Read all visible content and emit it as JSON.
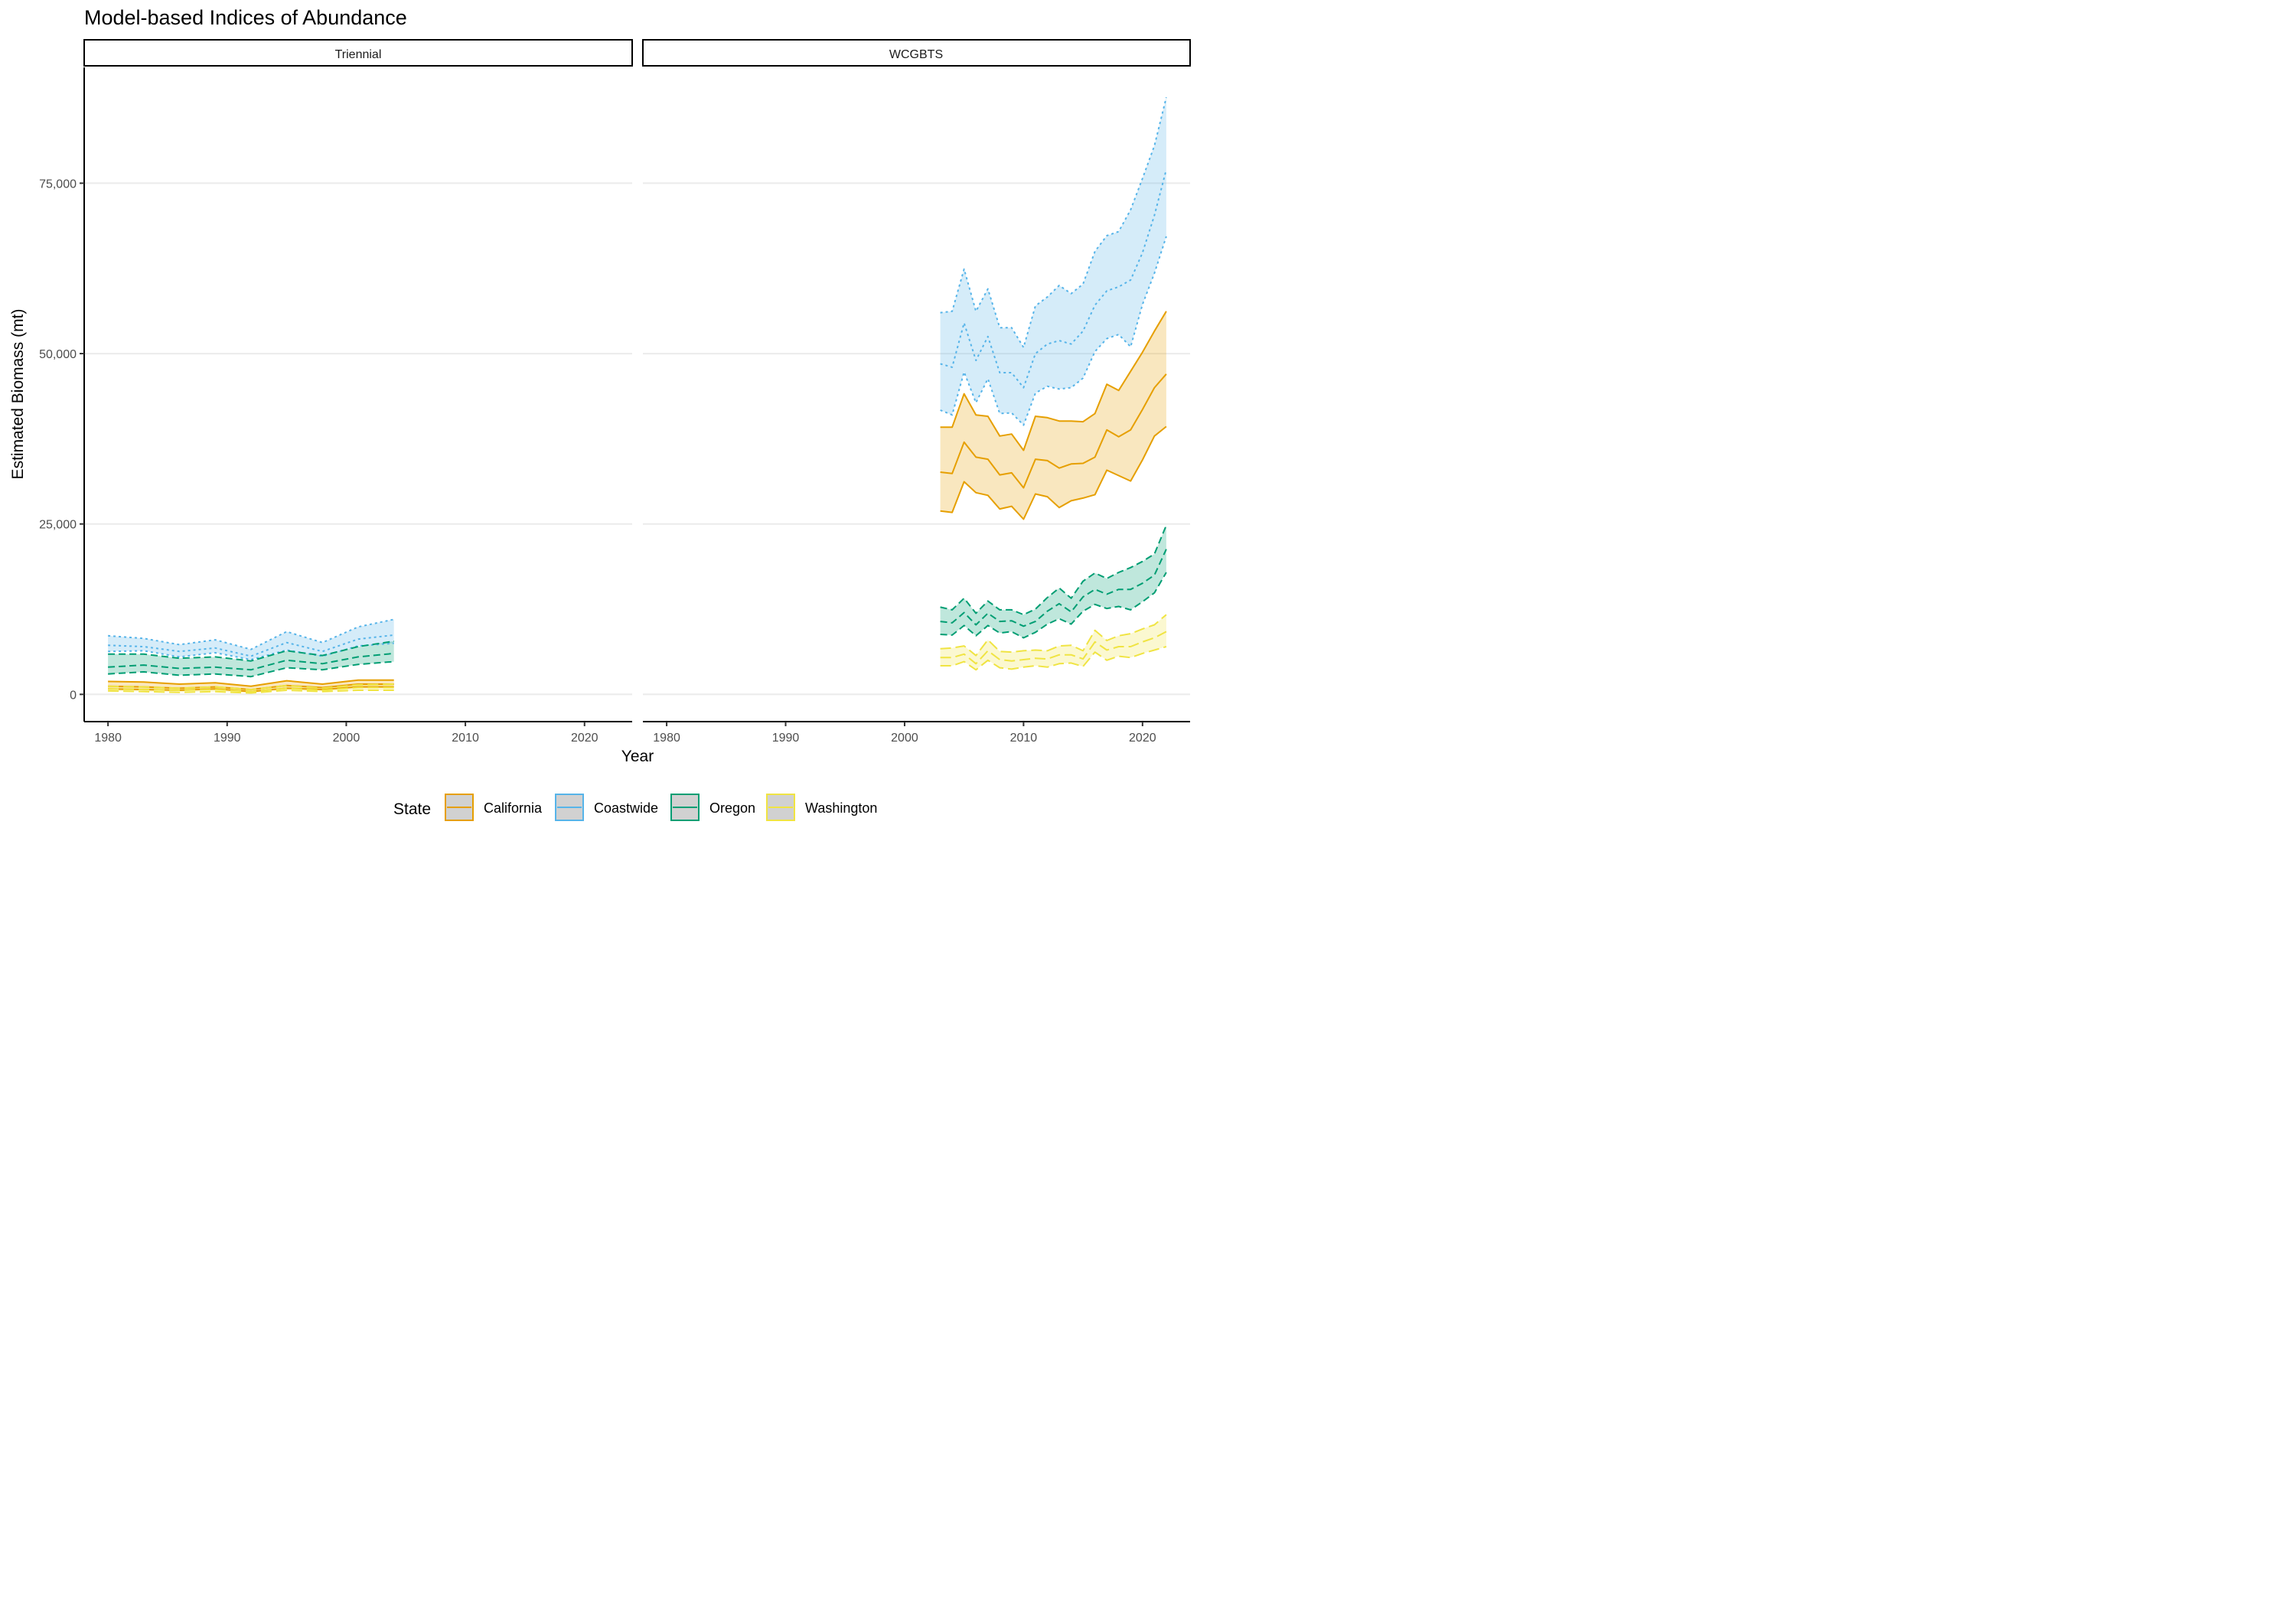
{
  "chart_data": {
    "type": "line",
    "title": "Model-based Indices of Abundance",
    "xlabel": "Year",
    "ylabel": "Estimated Biomass (mt)",
    "xlim": [
      1978,
      2024
    ],
    "ylim": [
      -4000,
      92000
    ],
    "x_ticks": [
      1980,
      1990,
      2000,
      2010,
      2020
    ],
    "y_ticks": [
      0,
      25000,
      50000,
      75000
    ],
    "y_tick_labels": [
      "0",
      "25,000",
      "50,000",
      "75,000"
    ],
    "grid": "horizontal major lines",
    "legend": {
      "title": "State",
      "position": "bottom",
      "entries": [
        {
          "name": "California",
          "color": "#E69F00",
          "linestyle": "solid"
        },
        {
          "name": "Coastwide",
          "color": "#56B4E9",
          "linestyle": "dotted"
        },
        {
          "name": "Oregon",
          "color": "#009E73",
          "linestyle": "dashed"
        },
        {
          "name": "Washington",
          "color": "#F0E442",
          "linestyle": "longdash"
        }
      ]
    },
    "panels": [
      {
        "name": "Triennial",
        "series": [
          {
            "name": "Coastwide",
            "x": [
              1980,
              1983,
              1986,
              1989,
              1992,
              1995,
              1998,
              2001,
              2004
            ],
            "values": [
              7200,
              7000,
              6300,
              6800,
              5600,
              7600,
              6300,
              8100,
              8700
            ],
            "lower": [
              6300,
              6400,
              5500,
              6100,
              5100,
              6500,
              5600,
              7100,
              7500
            ],
            "upper": [
              8600,
              8200,
              7300,
              8000,
              6600,
              9200,
              7600,
              9900,
              11000
            ]
          },
          {
            "name": "Oregon",
            "x": [
              1980,
              1983,
              1986,
              1989,
              1992,
              1995,
              1998,
              2001,
              2004
            ],
            "values": [
              4000,
              4300,
              3800,
              4000,
              3600,
              5000,
              4500,
              5500,
              6000
            ],
            "lower": [
              3000,
              3300,
              2800,
              3000,
              2600,
              3900,
              3600,
              4400,
              4800
            ],
            "upper": [
              5900,
              5900,
              5300,
              5500,
              4900,
              6400,
              5700,
              7000,
              7800
            ]
          },
          {
            "name": "California",
            "x": [
              1980,
              1983,
              1986,
              1989,
              1992,
              1995,
              1998,
              2001,
              2004
            ],
            "values": [
              1200,
              1100,
              900,
              1100,
              700,
              1300,
              1000,
              1500,
              1500
            ],
            "lower": [
              800,
              700,
              600,
              800,
              400,
              900,
              700,
              1100,
              1100
            ],
            "upper": [
              1900,
              1800,
              1500,
              1700,
              1200,
              2000,
              1500,
              2100,
              2100
            ]
          },
          {
            "name": "Washington",
            "x": [
              1980,
              1983,
              1986,
              1989,
              1992,
              1995,
              1998,
              2001,
              2004
            ],
            "values": [
              800,
              700,
              600,
              700,
              400,
              900,
              600,
              1000,
              1000
            ],
            "lower": [
              500,
              400,
              300,
              400,
              200,
              600,
              400,
              600,
              600
            ],
            "upper": [
              1200,
              1100,
              900,
              1100,
              700,
              1300,
              900,
              1400,
              1500
            ]
          }
        ]
      },
      {
        "name": "WCGBTS",
        "series": [
          {
            "name": "Coastwide",
            "x": [
              2003,
              2004,
              2005,
              2006,
              2007,
              2008,
              2009,
              2010,
              2011,
              2012,
              2013,
              2014,
              2015,
              2016,
              2017,
              2018,
              2019,
              2020,
              2021,
              2022
            ],
            "values": [
              48500,
              48000,
              54500,
              49000,
              52500,
              47200,
              47200,
              45000,
              50000,
              51400,
              51900,
              51400,
              53300,
              57100,
              59200,
              59800,
              60800,
              64800,
              70300,
              77000
            ],
            "lower": [
              41700,
              41000,
              47300,
              42800,
              46300,
              41200,
              41300,
              39500,
              44200,
              45200,
              44800,
              45000,
              46400,
              50300,
              52200,
              52800,
              51000,
              57200,
              61800,
              67200
            ],
            "upper": [
              56000,
              56200,
              62400,
              56200,
              59500,
              53800,
              53800,
              50900,
              57000,
              58300,
              60000,
              58800,
              60200,
              65000,
              67300,
              67900,
              71100,
              75700,
              80500,
              87600
            ]
          },
          {
            "name": "California",
            "x": [
              2003,
              2004,
              2005,
              2006,
              2007,
              2008,
              2009,
              2010,
              2011,
              2012,
              2013,
              2014,
              2015,
              2016,
              2017,
              2018,
              2019,
              2020,
              2021,
              2022
            ],
            "values": [
              32600,
              32400,
              37000,
              34800,
              34500,
              32200,
              32500,
              30300,
              34500,
              34300,
              33200,
              33800,
              33900,
              34800,
              38800,
              37800,
              38800,
              41800,
              45000,
              47000
            ],
            "lower": [
              26900,
              26700,
              31200,
              29600,
              29200,
              27200,
              27600,
              25700,
              29400,
              29000,
              27400,
              28400,
              28800,
              29300,
              32900,
              32100,
              31300,
              34400,
              37900,
              39300
            ],
            "upper": [
              39200,
              39200,
              44100,
              41000,
              40800,
              37900,
              38200,
              35800,
              40800,
              40600,
              40100,
              40100,
              40000,
              41200,
              45500,
              44600,
              47400,
              50200,
              53300,
              56200
            ]
          },
          {
            "name": "Oregon",
            "x": [
              2003,
              2004,
              2005,
              2006,
              2007,
              2008,
              2009,
              2010,
              2011,
              2012,
              2013,
              2014,
              2015,
              2016,
              2017,
              2018,
              2019,
              2020,
              2021,
              2022
            ],
            "values": [
              10700,
              10500,
              12000,
              10200,
              11900,
              10700,
              10800,
              10000,
              10700,
              12200,
              13300,
              12100,
              14300,
              15400,
              14700,
              15400,
              15400,
              16300,
              17500,
              21300
            ],
            "lower": [
              8800,
              8700,
              10100,
              8600,
              10100,
              9000,
              9200,
              8300,
              9100,
              10300,
              11100,
              10300,
              12200,
              13200,
              12600,
              12900,
              12400,
              13600,
              14900,
              17900
            ],
            "upper": [
              12800,
              12400,
              14100,
              11900,
              13700,
              12400,
              12400,
              11700,
              12500,
              14200,
              15600,
              14100,
              16600,
              17800,
              17000,
              17900,
              18600,
              19500,
              20600,
              24800
            ]
          },
          {
            "name": "Washington",
            "x": [
              2003,
              2004,
              2005,
              2006,
              2007,
              2008,
              2009,
              2010,
              2011,
              2012,
              2013,
              2014,
              2015,
              2016,
              2017,
              2018,
              2019,
              2020,
              2021,
              2022
            ],
            "values": [
              5400,
              5400,
              5900,
              4500,
              6400,
              5100,
              4900,
              5100,
              5300,
              5200,
              5800,
              5800,
              5200,
              7700,
              6500,
              7000,
              7000,
              7700,
              8300,
              9200
            ],
            "lower": [
              4200,
              4200,
              4800,
              3600,
              5000,
              3900,
              3700,
              4000,
              4200,
              4000,
              4500,
              4600,
              4100,
              6200,
              5000,
              5600,
              5400,
              6000,
              6500,
              7000
            ],
            "upper": [
              6700,
              6800,
              7100,
              5700,
              8000,
              6300,
              6200,
              6400,
              6500,
              6400,
              7100,
              7200,
              6400,
              9400,
              7900,
              8600,
              8900,
              9600,
              10200,
              11700
            ]
          }
        ]
      }
    ]
  }
}
